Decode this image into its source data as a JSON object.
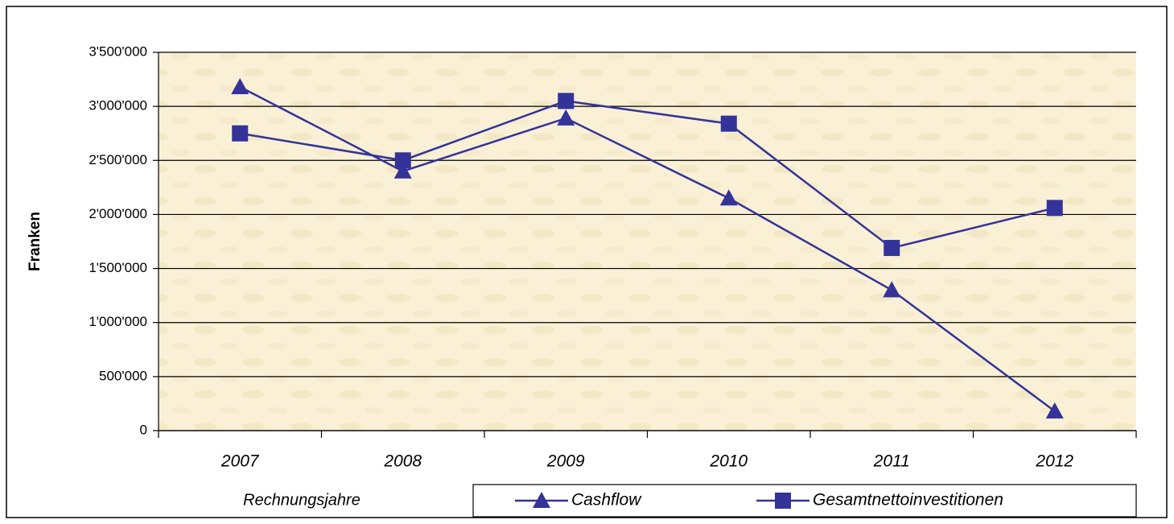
{
  "chart_data": {
    "type": "line",
    "x_label": "Rechnungsjahre",
    "y_label": "Franken",
    "categories": [
      "2007",
      "2008",
      "2009",
      "2010",
      "2011",
      "2012"
    ],
    "series": [
      {
        "name": "Cashflow",
        "color": "#333399",
        "marker": "triangle",
        "values": [
          3180000,
          2400000,
          2890000,
          2150000,
          1300000,
          180000
        ]
      },
      {
        "name": "Gesamtnettoinvestitionen",
        "color": "#333399",
        "marker": "square",
        "values": [
          2750000,
          2500000,
          3050000,
          2840000,
          1690000,
          2060000
        ]
      }
    ],
    "ylim": [
      0,
      3500000
    ],
    "yticks": [
      0,
      {
        "value": 500000,
        "label": "500'000"
      },
      {
        "value": 1000000,
        "label": "1'000'000"
      },
      {
        "value": 1500000,
        "label": "1'500'000"
      },
      {
        "value": 2000000,
        "label": "2'000'000"
      },
      {
        "value": 2500000,
        "label": "2'500'000"
      },
      {
        "value": 3000000,
        "label": "3'000'000"
      },
      {
        "value": 3500000,
        "label": "3'500'000"
      }
    ],
    "grid": true
  }
}
